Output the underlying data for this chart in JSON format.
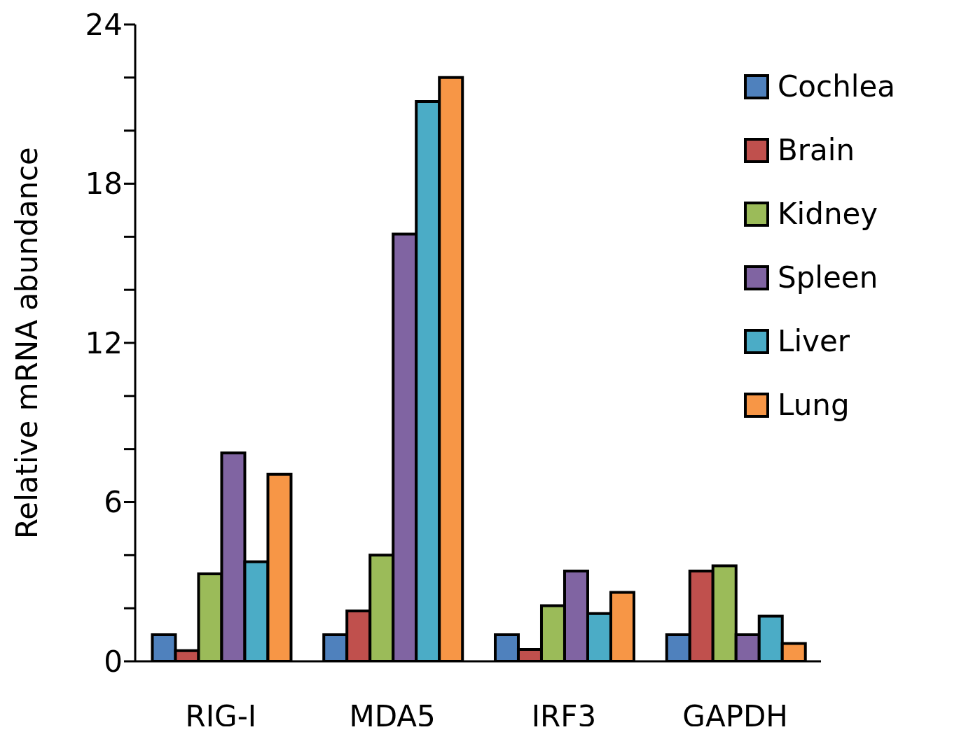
{
  "chart_data": {
    "type": "bar",
    "ylabel": "Relative mRNA abundance",
    "categories": [
      "RIG-I",
      "MDA5",
      "IRF3",
      "GAPDH"
    ],
    "series": [
      {
        "name": "Cochlea",
        "color": "#4f81bd",
        "values": [
          1,
          1,
          1,
          1
        ]
      },
      {
        "name": "Brain",
        "color": "#c0504d",
        "values": [
          0.4,
          1.9,
          0.45,
          3.4
        ]
      },
      {
        "name": "Kidney",
        "color": "#9bbb59",
        "values": [
          3.3,
          4.0,
          2.1,
          3.6
        ]
      },
      {
        "name": "Spleen",
        "color": "#8064a2",
        "values": [
          7.85,
          16.1,
          3.4,
          1.0
        ]
      },
      {
        "name": "Liver",
        "color": "#4bacc6",
        "values": [
          3.75,
          21.1,
          1.8,
          1.7
        ]
      },
      {
        "name": "Lung",
        "color": "#f79646",
        "values": [
          7.05,
          22.0,
          2.6,
          0.67
        ]
      }
    ],
    "ylim": [
      0,
      24
    ],
    "yticks": [
      0,
      {
        "value": 2,
        "label": null
      },
      {
        "value": 4,
        "label": null
      },
      6,
      {
        "value": 8,
        "label": null
      },
      {
        "value": 10,
        "label": null
      },
      12,
      {
        "value": 14,
        "label": null
      },
      {
        "value": 16,
        "label": null
      },
      18,
      {
        "value": 20,
        "label": null
      },
      {
        "value": 22,
        "label": null
      },
      24
    ],
    "grid": false,
    "legend": "top right"
  }
}
